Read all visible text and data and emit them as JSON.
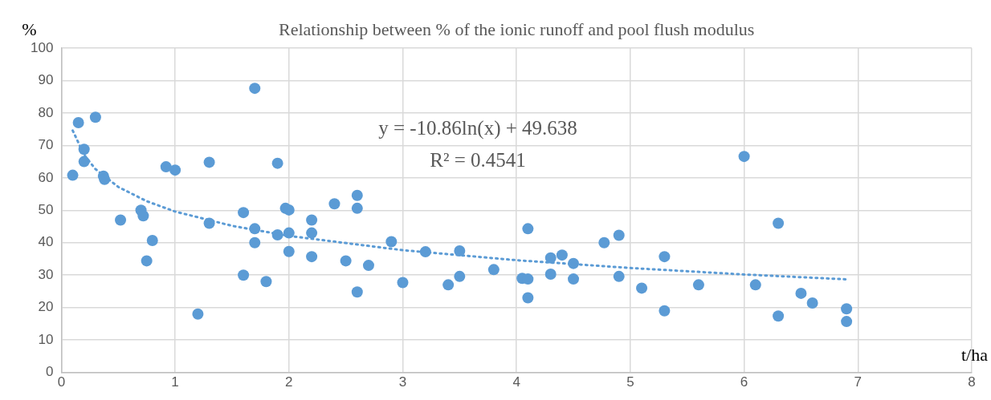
{
  "chart_data": {
    "type": "scatter",
    "title": "Relationship between % of the ionic runoff and pool flush modulus",
    "xlabel": "t/ha",
    "ylabel": "%",
    "xlim": [
      0,
      8
    ],
    "xticks": [
      0,
      1,
      2,
      3,
      4,
      5,
      6,
      7,
      8
    ],
    "ylim": [
      0,
      100
    ],
    "yticks": [
      0,
      10,
      20,
      30,
      40,
      50,
      60,
      70,
      80,
      90,
      100
    ],
    "grid": true,
    "legend": false,
    "marker": "circle",
    "annotations": [
      "y = -10.86ln(x) + 49.638",
      "R² = 0.4541"
    ],
    "series": [
      {
        "color": "#5b9bd5",
        "x": [
          0.1,
          0.15,
          0.2,
          0.2,
          0.3,
          0.37,
          0.38,
          0.52,
          0.7,
          0.72,
          0.75,
          0.8,
          0.92,
          1.0,
          1.2,
          1.3,
          1.3,
          1.6,
          1.6,
          1.7,
          1.7,
          1.7,
          1.8,
          1.9,
          1.9,
          1.97,
          2.0,
          2.0,
          2.0,
          2.2,
          2.2,
          2.2,
          2.4,
          2.5,
          2.6,
          2.6,
          2.6,
          2.7,
          2.9,
          3.0,
          3.2,
          3.4,
          3.5,
          3.5,
          3.8,
          4.05,
          4.1,
          4.1,
          4.1,
          4.3,
          4.3,
          4.4,
          4.5,
          4.5,
          4.77,
          4.9,
          4.9,
          5.1,
          5.3,
          5.3,
          5.6,
          6.0,
          6.1,
          6.3,
          6.3,
          6.5,
          6.6,
          6.9,
          6.9
        ],
        "values": [
          60.8,
          77,
          68.8,
          65,
          78.7,
          60.5,
          59.5,
          47,
          50,
          48.3,
          34.4,
          40.7,
          63.4,
          62.4,
          18,
          64.8,
          46,
          49.3,
          30,
          87.6,
          44.3,
          40,
          28,
          64.5,
          42.4,
          50.6,
          50.1,
          43,
          37.3,
          47,
          43,
          35.7,
          52,
          34.4,
          54.6,
          50.6,
          24.8,
          33,
          40.3,
          27.7,
          37.2,
          27,
          37.5,
          29.6,
          31.7,
          29,
          28.8,
          44.3,
          23,
          35.3,
          30.3,
          36.2,
          33.6,
          28.8,
          40,
          42.3,
          29.6,
          26,
          35.7,
          19,
          27,
          66.6,
          27,
          46,
          17.4,
          24.4,
          21.4,
          19.6,
          15.7
        ]
      },
      {
        "type": "line",
        "color": "#5b9bd5",
        "line_style": "dotted",
        "marker": "none",
        "x": [
          0.1,
          0.2,
          0.3,
          0.5,
          0.75,
          1,
          1.5,
          2,
          3,
          4,
          5,
          6,
          6.9
        ],
        "values": [
          74.6,
          67.1,
          62.7,
          57.2,
          52.8,
          49.6,
          45.2,
          42.1,
          37.7,
          34.6,
          32.2,
          30.2,
          28.7
        ]
      }
    ]
  }
}
